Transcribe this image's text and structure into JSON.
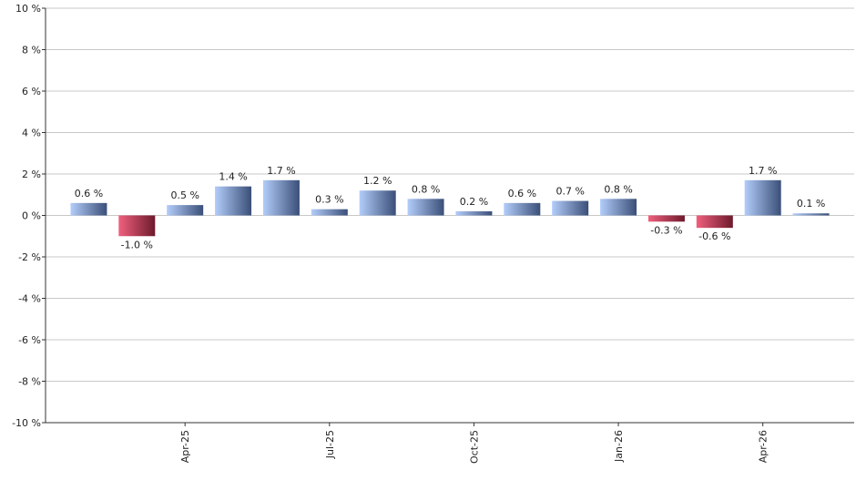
{
  "chart_data": {
    "type": "bar",
    "categories": [
      null,
      null,
      "Apr-25",
      null,
      null,
      "Jul-25",
      null,
      null,
      "Oct-25",
      null,
      null,
      "Jan-26",
      null,
      null,
      "Apr-26",
      null
    ],
    "values": [
      0.6,
      -1.0,
      0.5,
      1.4,
      1.7,
      0.3,
      1.2,
      0.8,
      0.2,
      0.6,
      0.7,
      0.8,
      -0.3,
      -0.6,
      1.7,
      0.1
    ],
    "value_labels": [
      "0.6 %",
      "-1.0 %",
      "0.5 %",
      "1.4 %",
      "1.7 %",
      "0.3 %",
      "1.2 %",
      "0.8 %",
      "0.2 %",
      "0.6 %",
      "0.7 %",
      "0.8 %",
      "-0.3 %",
      "-0.6 %",
      "1.7 %",
      "0.1 %"
    ],
    "positive_colors": [
      "#b3cdfa",
      "#3a4f78"
    ],
    "negative_colors": [
      "#f0607e",
      "#6e1a2c"
    ],
    "ylim": [
      -10,
      10
    ],
    "yticks": [
      {
        "value": -10,
        "label": "-10 %"
      },
      {
        "value": -8,
        "label": "-8 %"
      },
      {
        "value": -6,
        "label": "-6 %"
      },
      {
        "value": -4,
        "label": "-4 %"
      },
      {
        "value": -2,
        "label": "-2 %"
      },
      {
        "value": 0,
        "label": "0 %"
      },
      {
        "value": 2,
        "label": "2 %"
      },
      {
        "value": 4,
        "label": "4 %"
      },
      {
        "value": 6,
        "label": "6 %"
      },
      {
        "value": 8,
        "label": "8 %"
      },
      {
        "value": 10,
        "label": "10 %"
      }
    ],
    "grid": true
  }
}
